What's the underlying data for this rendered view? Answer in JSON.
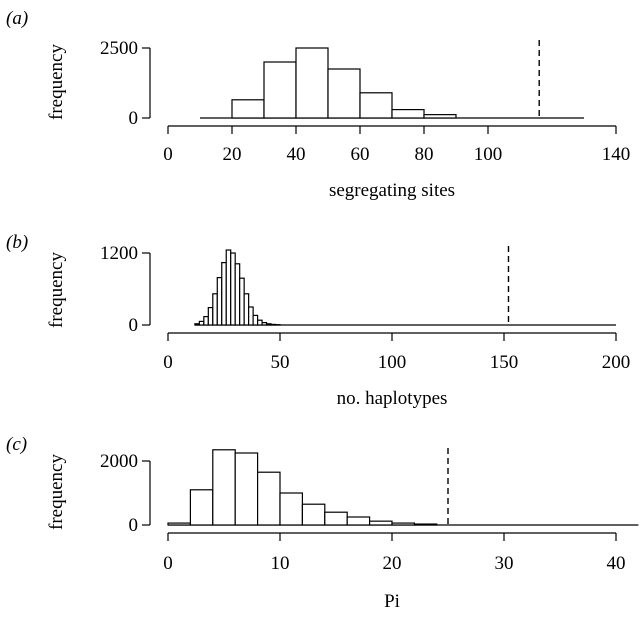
{
  "chart_data": [
    {
      "type": "bar",
      "panel_label": "(a)",
      "xlabel": "segregating sites",
      "ylabel": "frequency",
      "xlim": [
        0,
        140
      ],
      "ylim": [
        0,
        2500
      ],
      "xticks": [
        "0",
        "20",
        "40",
        "60",
        "80",
        "100",
        "140"
      ],
      "xtick_values": [
        0,
        20,
        40,
        60,
        80,
        100,
        140
      ],
      "yticks": [
        "0",
        "2500"
      ],
      "ytick_values": [
        0,
        2500
      ],
      "baseline_range": [
        10,
        130
      ],
      "bin_edges": [
        20,
        30,
        40,
        50,
        60,
        70,
        80,
        90
      ],
      "values": [
        650,
        2000,
        2500,
        1750,
        900,
        300,
        120
      ],
      "observed_value": 116
    },
    {
      "type": "bar",
      "panel_label": "(b)",
      "xlabel": "no. haplotypes",
      "ylabel": "frequency",
      "xlim": [
        0,
        200
      ],
      "ylim": [
        0,
        1200
      ],
      "xticks": [
        "0",
        "50",
        "100",
        "150",
        "200"
      ],
      "xtick_values": [
        0,
        50,
        100,
        150,
        200
      ],
      "yticks": [
        "0",
        "1200"
      ],
      "ytick_values": [
        0,
        1200
      ],
      "baseline_range": [
        12,
        200
      ],
      "bin_edges": [
        12,
        14,
        16,
        18,
        20,
        22,
        24,
        26,
        28,
        30,
        32,
        34,
        36,
        38,
        40,
        42,
        44,
        46,
        48,
        50
      ],
      "values": [
        20,
        60,
        140,
        290,
        520,
        790,
        1040,
        1250,
        1200,
        1020,
        780,
        520,
        300,
        160,
        80,
        40,
        20,
        10,
        5
      ],
      "observed_value": 152
    },
    {
      "type": "bar",
      "panel_label": "(c)",
      "xlabel": "Pi",
      "ylabel": "frequency",
      "xlim": [
        0,
        40
      ],
      "ylim": [
        0,
        2000
      ],
      "xticks": [
        "0",
        "10",
        "20",
        "30",
        "40"
      ],
      "xtick_values": [
        0,
        10,
        20,
        30,
        40
      ],
      "yticks": [
        "0",
        "2000"
      ],
      "ytick_values": [
        0,
        2000
      ],
      "baseline_range": [
        0,
        42
      ],
      "bin_edges": [
        0,
        2,
        4,
        6,
        8,
        10,
        12,
        14,
        16,
        18,
        20,
        22,
        24
      ],
      "values": [
        60,
        1100,
        2350,
        2250,
        1650,
        1000,
        650,
        400,
        250,
        120,
        60,
        30
      ],
      "observed_value": 25
    }
  ]
}
